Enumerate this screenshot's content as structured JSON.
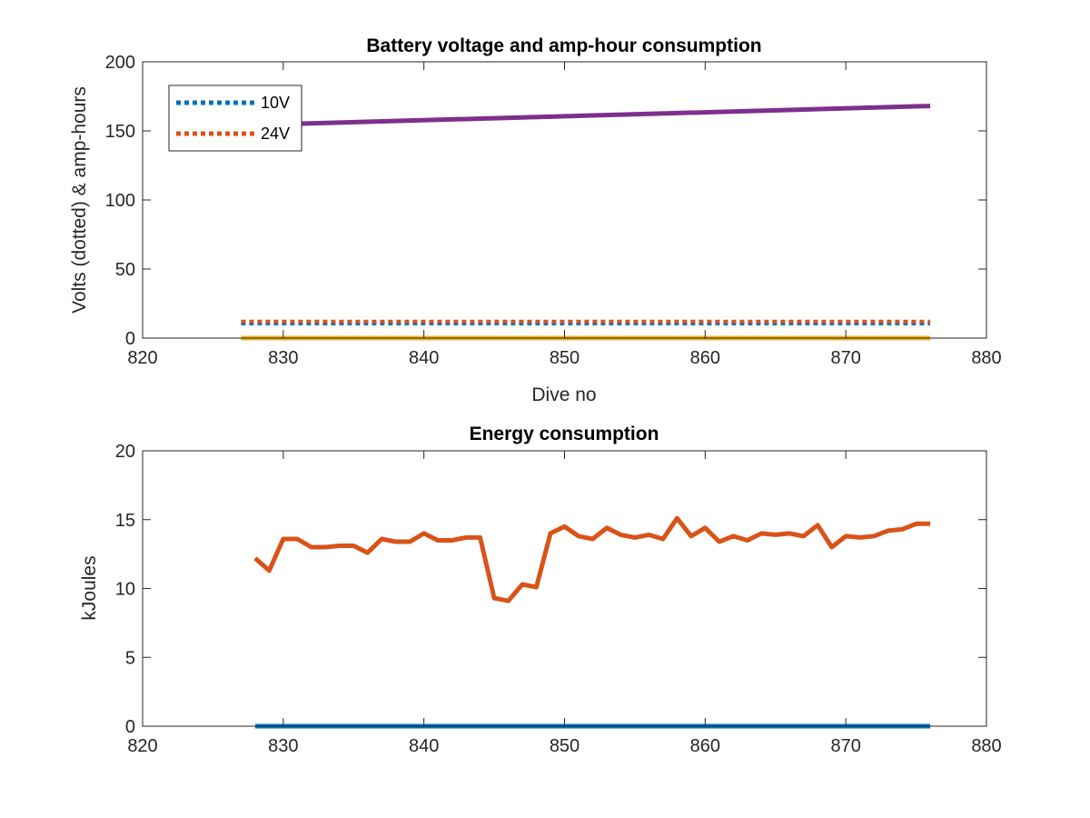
{
  "chart_data": [
    {
      "type": "line",
      "title": "Battery voltage and amp-hour consumption",
      "xlabel": "Dive no",
      "ylabel": "Volts (dotted) & amp-hours",
      "xlim": [
        820,
        880
      ],
      "ylim": [
        0,
        200
      ],
      "xticks": [
        820,
        830,
        840,
        850,
        860,
        870,
        880
      ],
      "yticks": [
        0,
        50,
        100,
        150,
        200
      ],
      "grid": false,
      "legend_position": "top-left",
      "series": [
        {
          "name": "10V",
          "style": "dotted",
          "color": "#0072BD",
          "x": [
            827,
            876
          ],
          "y": [
            10.5,
            10.5
          ],
          "in_legend": true
        },
        {
          "name": "24V",
          "style": "dotted",
          "color": "#D95319",
          "x": [
            827,
            876
          ],
          "y": [
            12,
            12
          ],
          "in_legend": true
        },
        {
          "name": "",
          "style": "solid",
          "color": "#EDB120",
          "x": [
            827,
            876
          ],
          "y": [
            0,
            0
          ],
          "in_legend": false
        },
        {
          "name": "",
          "style": "solid",
          "color": "#7E2F8E",
          "x": [
            827,
            876
          ],
          "y": [
            154,
            168
          ],
          "in_legend": false
        }
      ]
    },
    {
      "type": "line",
      "title": "Energy consumption",
      "xlabel": "",
      "ylabel": "kJoules",
      "xlim": [
        820,
        880
      ],
      "ylim": [
        0,
        20
      ],
      "xticks": [
        820,
        830,
        840,
        850,
        860,
        870,
        880
      ],
      "yticks": [
        0,
        5,
        10,
        15,
        20
      ],
      "grid": false,
      "series": [
        {
          "name": "",
          "style": "solid",
          "color": "#0072BD",
          "x": [
            828,
            876
          ],
          "y": [
            0,
            0
          ]
        },
        {
          "name": "",
          "style": "solid",
          "color": "#D95319",
          "x": [
            828,
            829,
            830,
            831,
            832,
            833,
            834,
            835,
            836,
            837,
            838,
            839,
            840,
            841,
            842,
            843,
            844,
            845,
            846,
            847,
            848,
            849,
            850,
            851,
            852,
            853,
            854,
            855,
            856,
            857,
            858,
            859,
            860,
            861,
            862,
            863,
            864,
            865,
            866,
            867,
            868,
            869,
            870,
            871,
            872,
            873,
            874,
            875,
            876
          ],
          "y": [
            12.2,
            11.3,
            13.6,
            13.6,
            13.0,
            13.0,
            13.1,
            13.1,
            12.6,
            13.6,
            13.4,
            13.4,
            14.0,
            13.5,
            13.5,
            13.7,
            13.7,
            9.3,
            9.1,
            10.3,
            10.1,
            14.0,
            14.5,
            13.8,
            13.6,
            14.4,
            13.9,
            13.7,
            13.9,
            13.6,
            15.1,
            13.8,
            14.4,
            13.4,
            13.8,
            13.5,
            14.0,
            13.9,
            14.0,
            13.8,
            14.6,
            13.0,
            13.8,
            13.7,
            13.8,
            14.2,
            14.3,
            14.7,
            14.7
          ]
        }
      ]
    }
  ]
}
